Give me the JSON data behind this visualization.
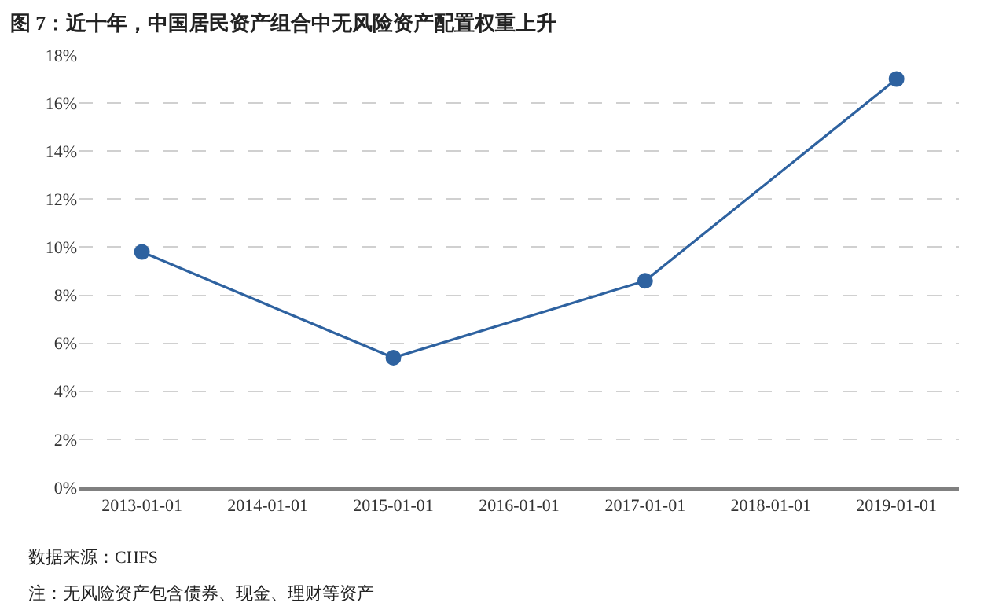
{
  "chart_data": {
    "type": "line",
    "title": "图 7：近十年，中国居民资产组合中无风险资产配置权重上升",
    "x": [
      "2013-01-01",
      "2015-01-01",
      "2017-01-01",
      "2019-01-01"
    ],
    "series": [
      {
        "color": "#2e62a0",
        "values": [
          9.8,
          5.4,
          8.6,
          17.0
        ]
      }
    ],
    "xlim": [
      "2012-07-01",
      "2019-07-01"
    ],
    "xticks": [
      {
        "value": "2013-01-01",
        "label": "2013-01-01"
      },
      {
        "value": "2014-01-01",
        "label": "2014-01-01"
      },
      {
        "value": "2015-01-01",
        "label": "2015-01-01"
      },
      {
        "value": "2016-01-01",
        "label": "2016-01-01"
      },
      {
        "value": "2017-01-01",
        "label": "2017-01-01"
      },
      {
        "value": "2018-01-01",
        "label": "2018-01-01"
      },
      {
        "value": "2019-01-01",
        "label": "2019-01-01"
      }
    ],
    "ylim": [
      0,
      18
    ],
    "yticks": [
      {
        "value": 0,
        "label": "0%"
      },
      {
        "value": 2,
        "label": "2%"
      },
      {
        "value": 4,
        "label": "4%"
      },
      {
        "value": 6,
        "label": "6%"
      },
      {
        "value": 8,
        "label": "8%"
      },
      {
        "value": 10,
        "label": "10%"
      },
      {
        "value": 12,
        "label": "12%"
      },
      {
        "value": 14,
        "label": "14%"
      },
      {
        "value": 16,
        "label": "16%"
      },
      {
        "value": 18,
        "label": "18%"
      }
    ],
    "grid": "y",
    "marker": "circle",
    "line_style": "solid",
    "annotations": [
      "数据来源：CHFS",
      "注：无风险资产包含债券、现金、理财等资产"
    ]
  }
}
